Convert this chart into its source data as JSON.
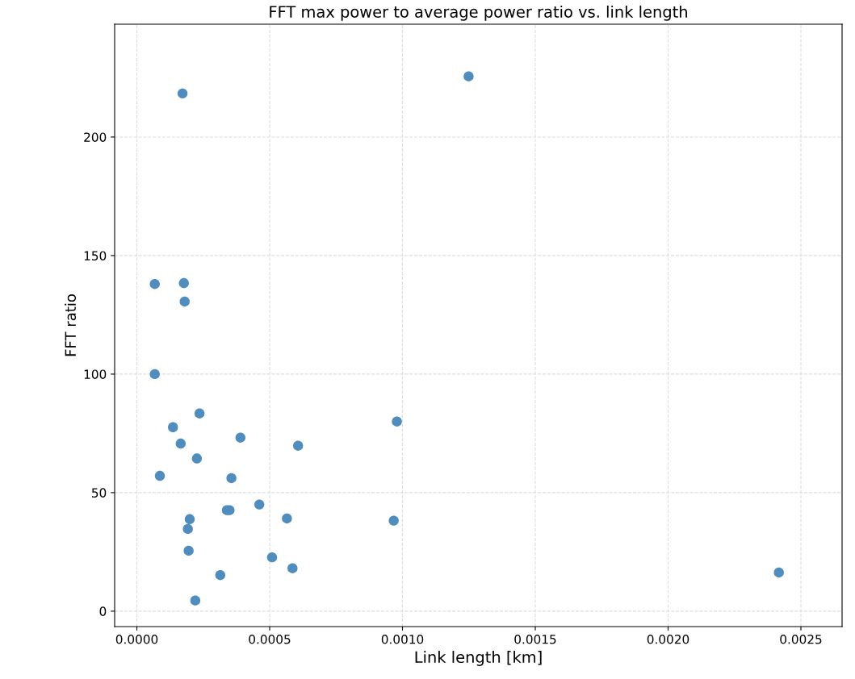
{
  "chart_data": {
    "type": "scatter",
    "title": "FFT max power to average power ratio vs. link length",
    "xlabel": "Link length [km]",
    "ylabel": "FFT ratio",
    "series": [
      {
        "color": "#4f8dbf",
        "marker": "circle",
        "x": [
          6.75e-05,
          0.000177,
          0.00018,
          6.75e-05,
          0.000236,
          0.000136,
          0.00039,
          0.000165,
          0.000607,
          0.000979,
          0.000226,
          8.66e-05,
          0.000356,
          0.000461,
          0.000339,
          0.000349,
          0.000199,
          0.000565,
          0.000967,
          0.000192,
          0.000195,
          0.000509,
          0.000586,
          0.000314,
          0.00022,
          0.001249,
          0.002417,
          0.000172
        ],
        "values": [
          138.0,
          138.4,
          130.6,
          100,
          83.4,
          77.6,
          73.2,
          70.7,
          69.8,
          80.0,
          64.4,
          57.1,
          56.1,
          45.0,
          42.6,
          42.6,
          38.8,
          39.1,
          38.2,
          34.7,
          25.5,
          22.7,
          18.1,
          15.2,
          4.5,
          225.6,
          16.3,
          218.4
        ]
      }
    ],
    "xlim": [
      -8.36e-05,
      0.002655
    ],
    "ylim": [
      -6.5,
      247.6
    ],
    "xticks": [
      {
        "value": 0,
        "label": "0.0000"
      },
      {
        "value": 0.0005,
        "label": "0.0005"
      },
      {
        "value": 0.001,
        "label": "0.0010"
      },
      {
        "value": 0.0015,
        "label": "0.0015"
      },
      {
        "value": 0.002,
        "label": "0.0020"
      },
      {
        "value": 0.0025,
        "label": "0.0025"
      }
    ],
    "yticks": [
      0,
      50,
      100,
      150,
      200
    ],
    "grid": true,
    "legend": false
  }
}
